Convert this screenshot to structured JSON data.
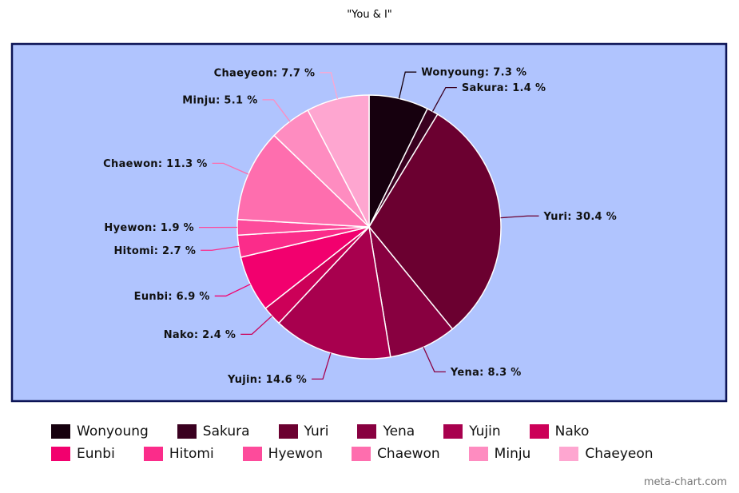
{
  "chart_data": {
    "type": "pie",
    "title": "\"You & I\"",
    "background_color": "#b0c4fe",
    "border_color": "#0c1456",
    "slices": [
      {
        "name": "Wonyoung",
        "value": 7.3,
        "label": "Wonyoung: 7.3 %",
        "color": "#16000e"
      },
      {
        "name": "Sakura",
        "value": 1.4,
        "label": "Sakura: 1.4 %",
        "color": "#3a0020"
      },
      {
        "name": "Yuri",
        "value": 30.4,
        "label": "Yuri: 30.4 %",
        "color": "#6b0030"
      },
      {
        "name": "Yena",
        "value": 8.3,
        "label": "Yena: 8.3 %",
        "color": "#880040"
      },
      {
        "name": "Yujin",
        "value": 14.6,
        "label": "Yujin: 14.6 %",
        "color": "#a8004e"
      },
      {
        "name": "Nako",
        "value": 2.4,
        "label": "Nako: 2.4 %",
        "color": "#cc0058"
      },
      {
        "name": "Eunbi",
        "value": 6.9,
        "label": "Eunbi: 6.9 %",
        "color": "#f2006e"
      },
      {
        "name": "Hitomi",
        "value": 2.7,
        "label": "Hitomi: 2.7 %",
        "color": "#fb2c8a"
      },
      {
        "name": "Hyewon",
        "value": 1.9,
        "label": "Hyewon: 1.9 %",
        "color": "#fd4b9b"
      },
      {
        "name": "Chaewon",
        "value": 11.3,
        "label": "Chaewon: 11.3 %",
        "color": "#fe6eae"
      },
      {
        "name": "Minju",
        "value": 5.1,
        "label": "Minju: 5.1 %",
        "color": "#fe8cc0"
      },
      {
        "name": "Chaeyeon",
        "value": 7.7,
        "label": "Chaeyeon: 7.7 %",
        "color": "#fea6d0"
      }
    ],
    "legend_placement": "bottom"
  },
  "watermark": "meta-chart.com"
}
